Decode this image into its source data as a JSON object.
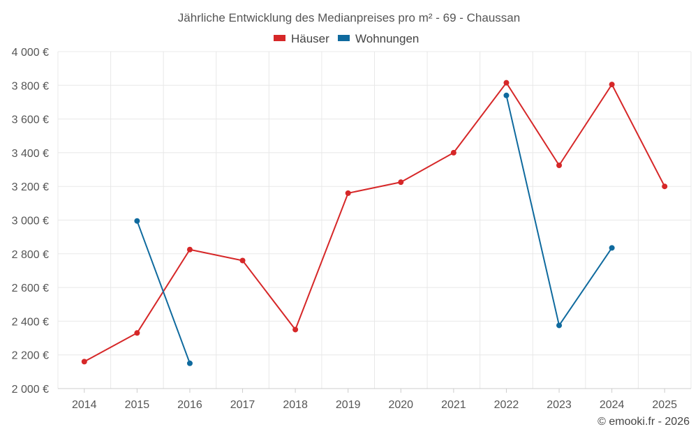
{
  "chart_data": {
    "type": "line",
    "title": "Jährliche Entwicklung des Medianpreises pro m² - 69 - Chaussan",
    "x": [
      "2014",
      "2015",
      "2016",
      "2017",
      "2018",
      "2019",
      "2020",
      "2021",
      "2022",
      "2023",
      "2024",
      "2025"
    ],
    "ylim": [
      2000,
      4000
    ],
    "yticks": [
      2000,
      2200,
      2400,
      2600,
      2800,
      3000,
      3200,
      3400,
      3600,
      3800,
      4000
    ],
    "ytick_labels": [
      "2 000 €",
      "2 200 €",
      "2 400 €",
      "2 600 €",
      "2 800 €",
      "3 000 €",
      "3 200 €",
      "3 400 €",
      "3 600 €",
      "3 800 €",
      "4 000 €"
    ],
    "legend_position": "top-center",
    "grid": true,
    "series": [
      {
        "name": "Häuser",
        "color": "#d62728",
        "values": [
          2160,
          2330,
          2825,
          2760,
          2350,
          3160,
          3225,
          3400,
          3815,
          3325,
          3805,
          3200
        ]
      },
      {
        "name": "Wohnungen",
        "color": "#0f6a9e",
        "values": [
          null,
          2995,
          2150,
          null,
          null,
          null,
          null,
          null,
          3740,
          2375,
          2835,
          null
        ]
      }
    ]
  },
  "credit": "© emooki.fr - 2026"
}
